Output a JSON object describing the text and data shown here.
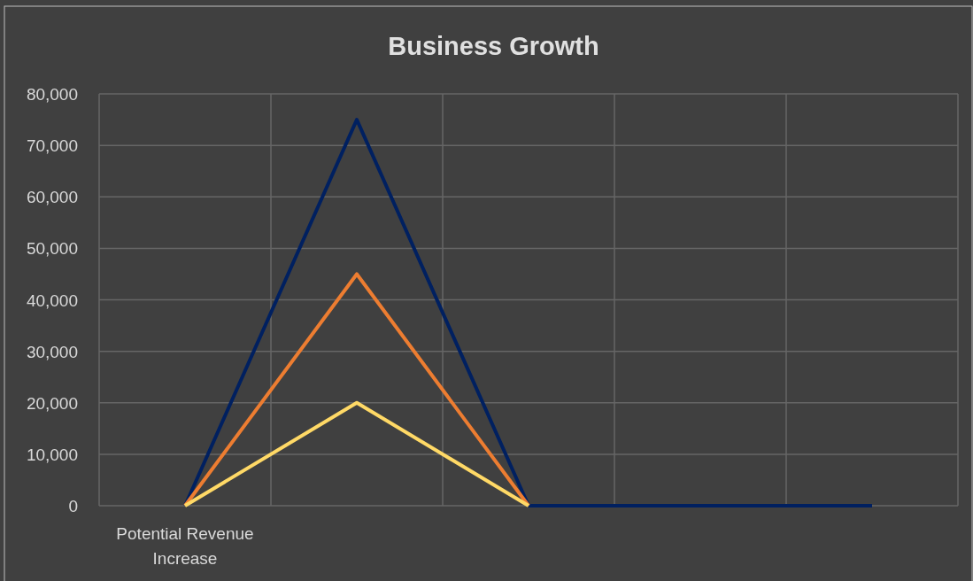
{
  "chart_data": {
    "type": "line",
    "title": "Business Growth",
    "categories": [
      "Potential Revenue Increase",
      null,
      null,
      null,
      null
    ],
    "series": [
      {
        "color": "#002060",
        "values": [
          0,
          75000,
          0,
          0,
          0
        ]
      },
      {
        "color": "#ed7d31",
        "values": [
          0,
          45000,
          0,
          null,
          null
        ]
      },
      {
        "color": "#ffd966",
        "values": [
          0,
          20000,
          0,
          null,
          null
        ]
      }
    ],
    "ylim": [
      0,
      80000
    ],
    "yticks": [
      {
        "value": 0,
        "label": "0"
      },
      {
        "value": 10000,
        "label": "10,000"
      },
      {
        "value": 20000,
        "label": "20,000"
      },
      {
        "value": 30000,
        "label": "30,000"
      },
      {
        "value": 40000,
        "label": "40,000"
      },
      {
        "value": 50000,
        "label": "50,000"
      },
      {
        "value": 60000,
        "label": "60,000"
      },
      {
        "value": 70000,
        "label": "70,000"
      },
      {
        "value": 80000,
        "label": "80,000"
      }
    ],
    "grid": true,
    "marker": "none",
    "line_style": "solid"
  }
}
